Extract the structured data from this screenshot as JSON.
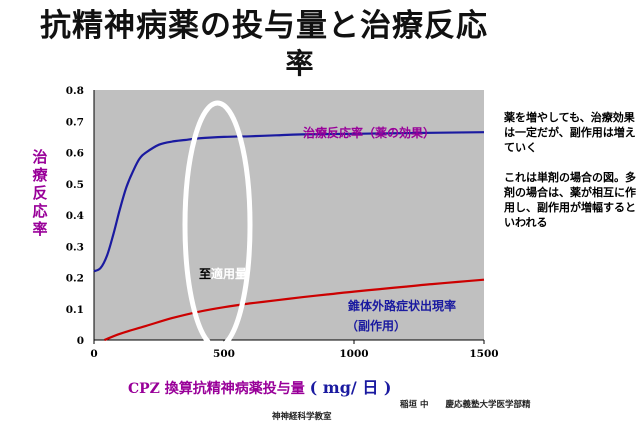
{
  "slide": {
    "title_line1": "抗精神病薬の投与量と治療反応",
    "title_line2": "率",
    "notes_p1": "薬を増やしても、治療効果は一定だが、副作用は増えていく",
    "notes_p2": "これは単剤の場合の図。多剤の場合は、薬が相互に作用し、副作用が増幅するといわれる",
    "credit_line1": "稲垣 中　　慶応義塾大学医学部精",
    "credit_line2": "神神経科学教室"
  },
  "chart_data": {
    "type": "line",
    "title": "",
    "xlabel": "CPZ 換算抗精神病薬投与量",
    "xlabel_unit": "( mg/ 日 )",
    "ylabel": "治療反応率",
    "xlim": [
      0,
      1500
    ],
    "ylim": [
      0,
      0.8
    ],
    "x_ticks": [
      "0",
      "500",
      "1000",
      "1500"
    ],
    "y_ticks": [
      "0",
      "0.1",
      "0.2",
      "0.3",
      "0.4",
      "0.5",
      "0.6",
      "0.7",
      "0.8"
    ],
    "grid": false,
    "background_color": "#c0c0c0",
    "series": [
      {
        "name": "治療反応率（薬の効果）",
        "color": "#1a1aa0",
        "x": [
          0,
          25,
          50,
          75,
          100,
          125,
          150,
          175,
          200,
          250,
          300,
          350,
          400,
          500,
          600,
          700,
          800,
          1000,
          1200,
          1500
        ],
        "y": [
          0.22,
          0.23,
          0.27,
          0.34,
          0.42,
          0.49,
          0.54,
          0.58,
          0.6,
          0.625,
          0.635,
          0.64,
          0.645,
          0.65,
          0.652,
          0.655,
          0.658,
          0.66,
          0.662,
          0.665
        ]
      },
      {
        "name": "錐体外路症状出現率（副作用）",
        "color": "#cc0000",
        "x": [
          40,
          100,
          200,
          300,
          400,
          500,
          600,
          700,
          800,
          900,
          1000,
          1100,
          1200,
          1300,
          1400,
          1500
        ],
        "y": [
          0.0,
          0.02,
          0.045,
          0.07,
          0.09,
          0.105,
          0.117,
          0.127,
          0.137,
          0.146,
          0.155,
          0.163,
          0.171,
          0.179,
          0.186,
          0.193
        ]
      }
    ],
    "annotations": {
      "optimal_label_part1": "至",
      "optimal_label_part2": "適用量",
      "optimal_range": [
        350,
        600
      ],
      "blue_label": "治療反応率（薬の効果）",
      "red_label_line1": "錐体外路症状出現率",
      "red_label_line2": "（副作用）"
    }
  }
}
